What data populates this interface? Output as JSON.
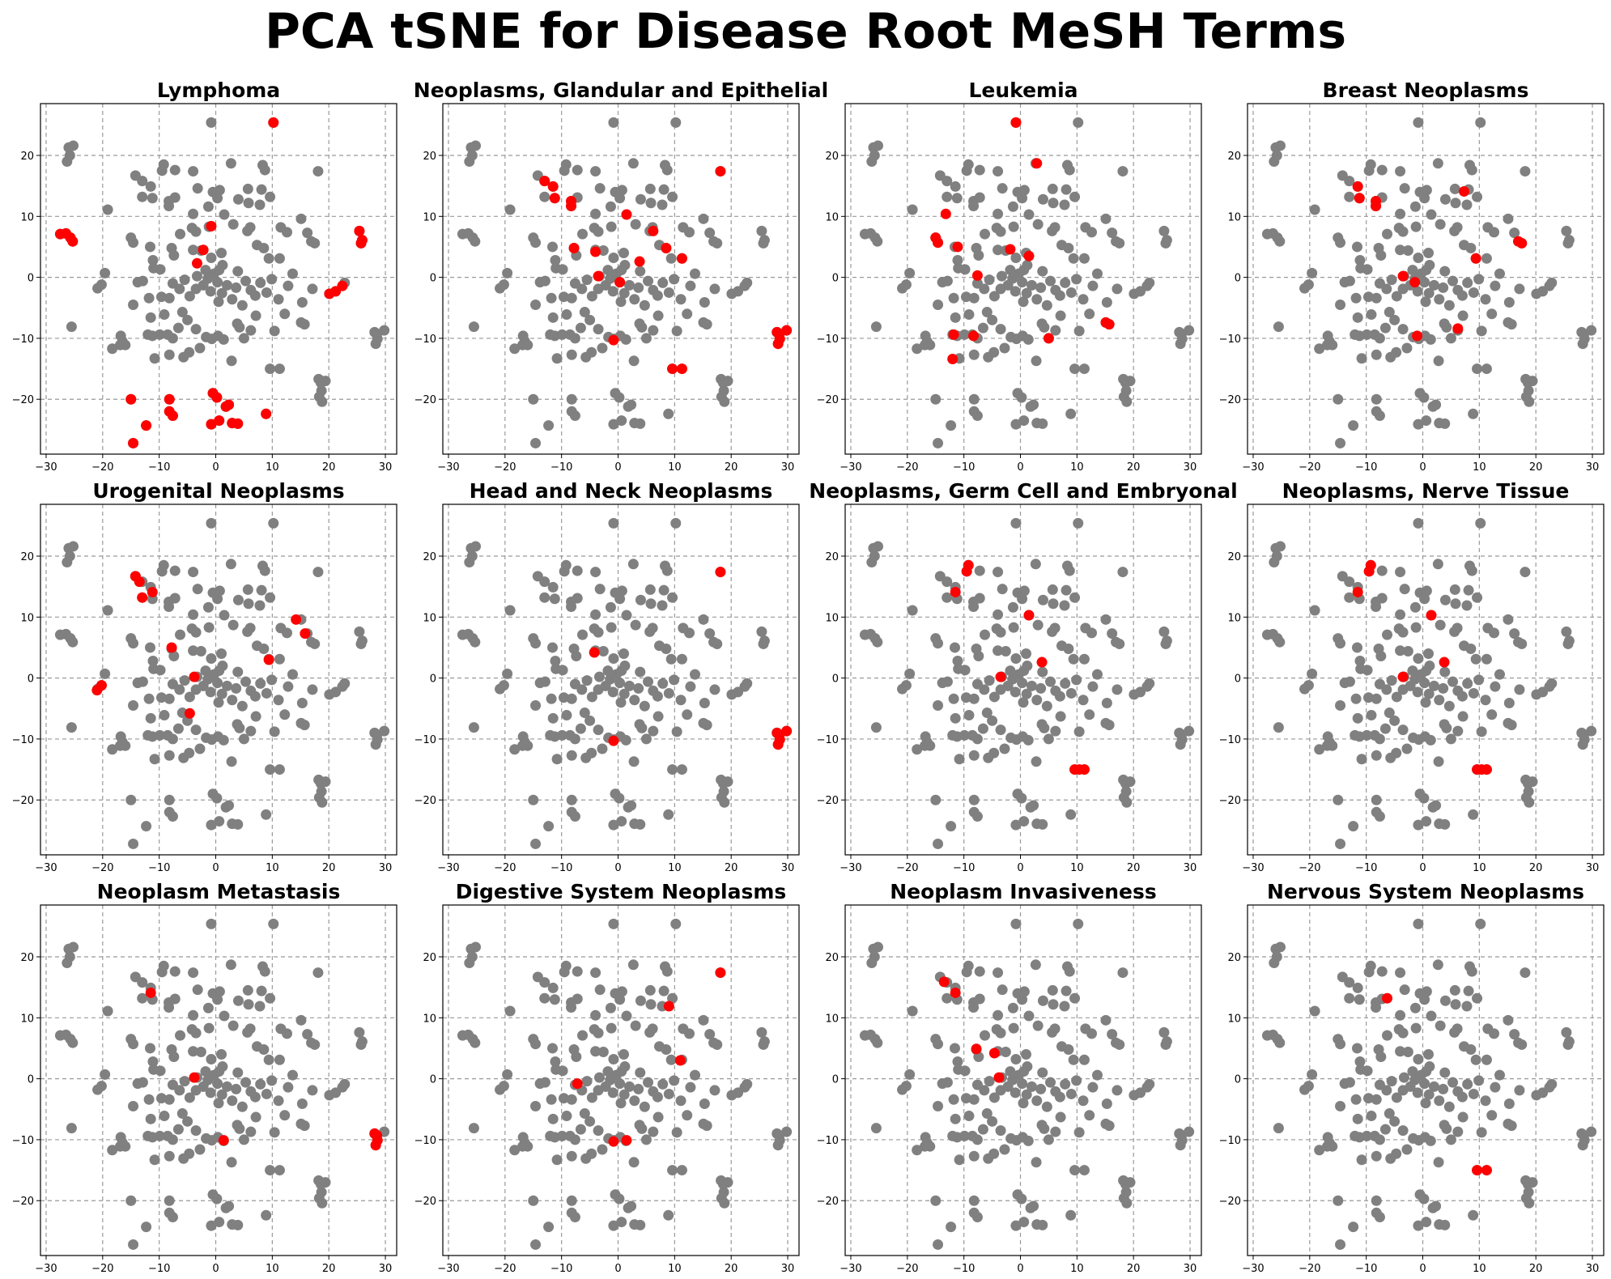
{
  "figure": {
    "title": "PCA tSNE for Disease Root MeSH Terms",
    "colors": {
      "background_points": "#808080",
      "highlight_points": "#ff0000",
      "grid": "#999999"
    }
  },
  "chart_data": {
    "type": "scatter",
    "xlim": [
      -31,
      32
    ],
    "ylim": [
      -29,
      28.5
    ],
    "xticks": [
      -30,
      -20,
      -10,
      0,
      10,
      20,
      30
    ],
    "yticks": [
      -20,
      -10,
      0,
      10,
      20
    ],
    "grid": true,
    "layout": "3 rows x 4 columns of subplots",
    "background_series": {
      "color": "#808080",
      "points": [
        [
          -26,
          21.3
        ],
        [
          -25.2,
          21.6
        ],
        [
          -25.8,
          20
        ],
        [
          -26.3,
          19
        ],
        [
          -27.5,
          7.1
        ],
        [
          -26.5,
          7.2
        ],
        [
          -25.7,
          6.5
        ],
        [
          -25.3,
          5.9
        ],
        [
          -25.5,
          -8.1
        ],
        [
          -0.8,
          25.4
        ],
        [
          10.2,
          25.4
        ],
        [
          18.1,
          17.4
        ],
        [
          -14.2,
          16.7
        ],
        [
          -13,
          15.8
        ],
        [
          -11.5,
          14.9
        ],
        [
          -11.2,
          13
        ],
        [
          -9.2,
          18.5
        ],
        [
          -9.5,
          17.5
        ],
        [
          -7.2,
          17.6
        ],
        [
          -4,
          17.4
        ],
        [
          -3.2,
          14.6
        ],
        [
          -0.5,
          14
        ],
        [
          0.3,
          13
        ],
        [
          2.7,
          18.7
        ],
        [
          8.7,
          17.6
        ],
        [
          8.3,
          18.4
        ],
        [
          0.7,
          14.3
        ],
        [
          -13,
          13.2
        ],
        [
          -8.3,
          12.5
        ],
        [
          -8.3,
          11.7
        ],
        [
          -7.2,
          13.1
        ],
        [
          -4,
          10.4
        ],
        [
          -1.3,
          11.6
        ],
        [
          1.5,
          10.3
        ],
        [
          4,
          12.8
        ],
        [
          5.8,
          12.2
        ],
        [
          7.8,
          11.9
        ],
        [
          9.6,
          13.2
        ],
        [
          8.1,
          14.4
        ],
        [
          5.7,
          14.5
        ],
        [
          -19.1,
          11.1
        ],
        [
          -15,
          6.5
        ],
        [
          -14.6,
          5.7
        ],
        [
          -11.6,
          5
        ],
        [
          -11.1,
          2.8
        ],
        [
          -11,
          1.5
        ],
        [
          -7.8,
          4.8
        ],
        [
          -7.4,
          3.6
        ],
        [
          -6.3,
          7.1
        ],
        [
          -4.2,
          8.1
        ],
        [
          -3.5,
          7.5
        ],
        [
          -1.2,
          8.3
        ],
        [
          -2.6,
          4.4
        ],
        [
          -4,
          4.5
        ],
        [
          -0.8,
          3.2
        ],
        [
          1,
          4
        ],
        [
          1.2,
          2
        ],
        [
          3.1,
          8.7
        ],
        [
          5.6,
          7.6
        ],
        [
          6.1,
          8.2
        ],
        [
          7.3,
          5.3
        ],
        [
          8.5,
          4.8
        ],
        [
          9.4,
          3.1
        ],
        [
          11.3,
          3.1
        ],
        [
          11.5,
          8.2
        ],
        [
          12.6,
          7.4
        ],
        [
          15.1,
          9.6
        ],
        [
          16.2,
          7.3
        ],
        [
          16.9,
          5.9
        ],
        [
          17.5,
          5.6
        ],
        [
          25.4,
          7.6
        ],
        [
          25.9,
          6.1
        ],
        [
          25.7,
          5.6
        ],
        [
          -20.9,
          -1.8
        ],
        [
          -20.2,
          -1.2
        ],
        [
          -19.6,
          0.7
        ],
        [
          -13.8,
          -0.8
        ],
        [
          -12.9,
          -0.6
        ],
        [
          -11.8,
          -3.4
        ],
        [
          -11.5,
          -6.6
        ],
        [
          -9.6,
          -3.2
        ],
        [
          -9.1,
          -6.1
        ],
        [
          -8.2,
          -3.4
        ],
        [
          -7.6,
          -1
        ],
        [
          -6.4,
          -1.9
        ],
        [
          -5.9,
          -5.7
        ],
        [
          -5.5,
          -0.4
        ],
        [
          -4.6,
          -3.1
        ],
        [
          -3.5,
          -1.9
        ],
        [
          -3.3,
          0.2
        ],
        [
          -2.2,
          -1.3
        ],
        [
          -1.8,
          1.2
        ],
        [
          -1.4,
          -0.2
        ],
        [
          -0.9,
          -2.3
        ],
        [
          -0.3,
          0.6
        ],
        [
          0.3,
          -0.8
        ],
        [
          0.6,
          1.2
        ],
        [
          1.1,
          -2.6
        ],
        [
          2,
          -1.3
        ],
        [
          2.9,
          -3.6
        ],
        [
          3.6,
          -1.7
        ],
        [
          3.9,
          1
        ],
        [
          4.7,
          -4.6
        ],
        [
          5.3,
          -0.6
        ],
        [
          6.2,
          -2.1
        ],
        [
          7,
          -3
        ],
        [
          7.9,
          -0.9
        ],
        [
          9,
          -2.5
        ],
        [
          9.9,
          -0.3
        ],
        [
          11.1,
          -3.6
        ],
        [
          12.8,
          -1.4
        ],
        [
          13.6,
          0.6
        ],
        [
          15.3,
          -4.1
        ],
        [
          17.1,
          -1.9
        ],
        [
          20.1,
          -2.7
        ],
        [
          21.2,
          -2.3
        ],
        [
          22.4,
          -1.4
        ],
        [
          22.8,
          -0.9
        ],
        [
          -14.6,
          -4.5
        ],
        [
          -12,
          -9.4
        ],
        [
          -11.2,
          -9.6
        ],
        [
          -10.8,
          -13.3
        ],
        [
          -9.9,
          -9.4
        ],
        [
          -8.5,
          -9.4
        ],
        [
          -8.2,
          -12.7
        ],
        [
          -7.6,
          -10
        ],
        [
          -6.6,
          -8.3
        ],
        [
          -5.7,
          -13.1
        ],
        [
          -4.7,
          -12.3
        ],
        [
          -3.5,
          -8.5
        ],
        [
          -2.8,
          -11.6
        ],
        [
          -1.7,
          -9.8
        ],
        [
          -0.7,
          -10.1
        ],
        [
          0.4,
          -9.6
        ],
        [
          1.4,
          -10.2
        ],
        [
          2.8,
          -13.7
        ],
        [
          3.8,
          -7.6
        ],
        [
          5,
          -10
        ],
        [
          6.2,
          -8.7
        ],
        [
          7.1,
          -6.3
        ],
        [
          9.6,
          -15
        ],
        [
          10.4,
          -8.8
        ],
        [
          11.3,
          -15
        ],
        [
          15.1,
          -7.4
        ],
        [
          15.7,
          -7.7
        ],
        [
          -16.8,
          -9.6
        ],
        [
          -16.5,
          -10.5
        ],
        [
          -16.9,
          -11.1
        ],
        [
          -16,
          -11.1
        ],
        [
          -18.3,
          -11.7
        ],
        [
          -15,
          -20
        ],
        [
          -14.6,
          -27.2
        ],
        [
          -12.3,
          -24.3
        ],
        [
          -8.2,
          -20
        ],
        [
          -8.2,
          -22
        ],
        [
          -7.6,
          -22.7
        ],
        [
          -0.5,
          -19
        ],
        [
          0.2,
          -19.7
        ],
        [
          -0.8,
          -24.1
        ],
        [
          0.6,
          -23.5
        ],
        [
          1.8,
          -21.2
        ],
        [
          2.3,
          -20.9
        ],
        [
          2.9,
          -23.9
        ],
        [
          3.9,
          -24
        ],
        [
          8.9,
          -22.4
        ],
        [
          18.2,
          -16.7
        ],
        [
          18.6,
          -17.3
        ],
        [
          19.4,
          -17
        ],
        [
          18.7,
          -18.6
        ],
        [
          18.3,
          -19.6
        ],
        [
          18.8,
          -20.4
        ],
        [
          28.1,
          -9
        ],
        [
          28.5,
          -9.3
        ],
        [
          29.8,
          -8.7
        ],
        [
          28.6,
          -10.1
        ],
        [
          28.3,
          -10.9
        ],
        [
          0.5,
          -4
        ],
        [
          -5,
          -7
        ],
        [
          4.2,
          -8.2
        ],
        [
          -9.8,
          1.3
        ],
        [
          12.2,
          -6
        ]
      ]
    },
    "subplots": [
      {
        "title": "Lymphoma",
        "highlight": [
          [
            10.2,
            25.4
          ],
          [
            -27.5,
            7.1
          ],
          [
            -26.5,
            7.2
          ],
          [
            -25.7,
            6.5
          ],
          [
            -25.3,
            5.9
          ],
          [
            25.4,
            7.6
          ],
          [
            25.9,
            6.1
          ],
          [
            25.7,
            5.6
          ],
          [
            -0.8,
            8.4
          ],
          [
            -2.2,
            4.5
          ],
          [
            -3.3,
            2.3
          ],
          [
            20.1,
            -2.7
          ],
          [
            21.2,
            -2.3
          ],
          [
            22.4,
            -1.4
          ],
          [
            -15,
            -20
          ],
          [
            -14.6,
            -27.2
          ],
          [
            -12.3,
            -24.3
          ],
          [
            -8.2,
            -20
          ],
          [
            -8.2,
            -22
          ],
          [
            -7.6,
            -22.7
          ],
          [
            -0.5,
            -19
          ],
          [
            0.2,
            -19.7
          ],
          [
            -0.8,
            -24.1
          ],
          [
            0.6,
            -23.5
          ],
          [
            1.8,
            -21.2
          ],
          [
            2.3,
            -20.9
          ],
          [
            2.9,
            -23.9
          ],
          [
            3.9,
            -24
          ],
          [
            8.9,
            -22.4
          ]
        ]
      },
      {
        "title": "Neoplasms, Glandular and Epithelial",
        "highlight": [
          [
            18.1,
            17.4
          ],
          [
            -13,
            15.8
          ],
          [
            -11.5,
            14.9
          ],
          [
            -11.2,
            13
          ],
          [
            -8.3,
            12.5
          ],
          [
            -8.3,
            11.7
          ],
          [
            1.5,
            10.3
          ],
          [
            6.2,
            7.6
          ],
          [
            -7.8,
            4.8
          ],
          [
            -4,
            4.2
          ],
          [
            8.5,
            4.8
          ],
          [
            11.3,
            3.1
          ],
          [
            3.8,
            2.6
          ],
          [
            -3.5,
            0.2
          ],
          [
            0.3,
            -0.8
          ],
          [
            -0.8,
            -10.3
          ],
          [
            9.6,
            -15
          ],
          [
            11.3,
            -15
          ],
          [
            28.1,
            -9
          ],
          [
            28.5,
            -9.3
          ],
          [
            29.8,
            -8.7
          ],
          [
            28.6,
            -10.1
          ],
          [
            28.3,
            -10.9
          ]
        ]
      },
      {
        "title": "Leukemia",
        "highlight": [
          [
            -0.8,
            25.4
          ],
          [
            2.9,
            18.7
          ],
          [
            -13.2,
            10.4
          ],
          [
            -15,
            6.5
          ],
          [
            -14.6,
            5.7
          ],
          [
            -11.1,
            5
          ],
          [
            -1.8,
            4.6
          ],
          [
            1.5,
            3.5
          ],
          [
            -7.6,
            0.3
          ],
          [
            -11.8,
            -9.4
          ],
          [
            -8.3,
            -9.6
          ],
          [
            -12,
            -13.4
          ],
          [
            5,
            -10
          ],
          [
            15.1,
            -7.4
          ],
          [
            15.7,
            -7.7
          ]
        ]
      },
      {
        "title": "Breast Neoplasms",
        "highlight": [
          [
            -11.5,
            14.9
          ],
          [
            -11.2,
            13
          ],
          [
            -8.3,
            12.5
          ],
          [
            -8.3,
            11.7
          ],
          [
            7.3,
            14.1
          ],
          [
            9.4,
            3.1
          ],
          [
            16.9,
            5.9
          ],
          [
            17.5,
            5.6
          ],
          [
            -3.5,
            0.2
          ],
          [
            -1.4,
            -0.8
          ],
          [
            6.2,
            -8.4
          ],
          [
            -1,
            -9.6
          ]
        ]
      },
      {
        "title": "Urogenital Neoplasms",
        "highlight": [
          [
            -14.2,
            16.7
          ],
          [
            -13.5,
            15.8
          ],
          [
            -13,
            13.2
          ],
          [
            -11.2,
            14.1
          ],
          [
            -7.8,
            5
          ],
          [
            14.2,
            9.6
          ],
          [
            15.8,
            7.3
          ],
          [
            9.4,
            3
          ],
          [
            -3.8,
            0.2
          ],
          [
            -20.2,
            -1.2
          ],
          [
            -21,
            -2
          ],
          [
            -4.6,
            -5.8
          ]
        ]
      },
      {
        "title": "Head and Neck Neoplasms",
        "highlight": [
          [
            18.1,
            17.4
          ],
          [
            -4.2,
            4.2
          ],
          [
            -0.8,
            -10.3
          ],
          [
            28.1,
            -9
          ],
          [
            28.5,
            -9.3
          ],
          [
            29.8,
            -8.7
          ],
          [
            28.6,
            -10.1
          ],
          [
            28.3,
            -10.9
          ]
        ]
      },
      {
        "title": "Neoplasms, Germ Cell and Embryonal",
        "highlight": [
          [
            -9.2,
            18.5
          ],
          [
            -9.5,
            17.5
          ],
          [
            -11.5,
            14.1
          ],
          [
            1.5,
            10.3
          ],
          [
            3.8,
            2.6
          ],
          [
            -3.5,
            0.2
          ],
          [
            9.6,
            -15
          ],
          [
            10.4,
            -15
          ],
          [
            11.3,
            -15
          ]
        ]
      },
      {
        "title": "Neoplasms, Nerve Tissue",
        "highlight": [
          [
            -9.2,
            18.5
          ],
          [
            -9.5,
            17.5
          ],
          [
            -11.5,
            14.1
          ],
          [
            1.5,
            10.3
          ],
          [
            3.8,
            2.6
          ],
          [
            -3.5,
            0.2
          ],
          [
            9.6,
            -15
          ],
          [
            10.4,
            -15
          ],
          [
            11.3,
            -15
          ]
        ]
      },
      {
        "title": "Neoplasm Metastasis",
        "highlight": [
          [
            -11.5,
            14.1
          ],
          [
            -3.8,
            0.2
          ],
          [
            1.4,
            -10.1
          ],
          [
            28.1,
            -9
          ],
          [
            28.5,
            -9.3
          ],
          [
            28.6,
            -10.1
          ],
          [
            28.3,
            -10.9
          ]
        ]
      },
      {
        "title": "Digestive System Neoplasms",
        "highlight": [
          [
            18.1,
            17.4
          ],
          [
            9,
            11.9
          ],
          [
            11,
            3
          ],
          [
            -7.2,
            -0.8
          ],
          [
            -0.8,
            -10.3
          ],
          [
            1.5,
            -10.1
          ]
        ]
      },
      {
        "title": "Neoplasm Invasiveness",
        "highlight": [
          [
            -13.5,
            15.9
          ],
          [
            -11.5,
            14.1
          ],
          [
            -7.8,
            4.9
          ],
          [
            -4.6,
            4.2
          ],
          [
            -3.8,
            0.2
          ]
        ]
      },
      {
        "title": "Nervous System Neoplasms",
        "highlight": [
          [
            -6.3,
            13.2
          ],
          [
            9.6,
            -15
          ],
          [
            11.3,
            -15
          ]
        ]
      }
    ]
  }
}
